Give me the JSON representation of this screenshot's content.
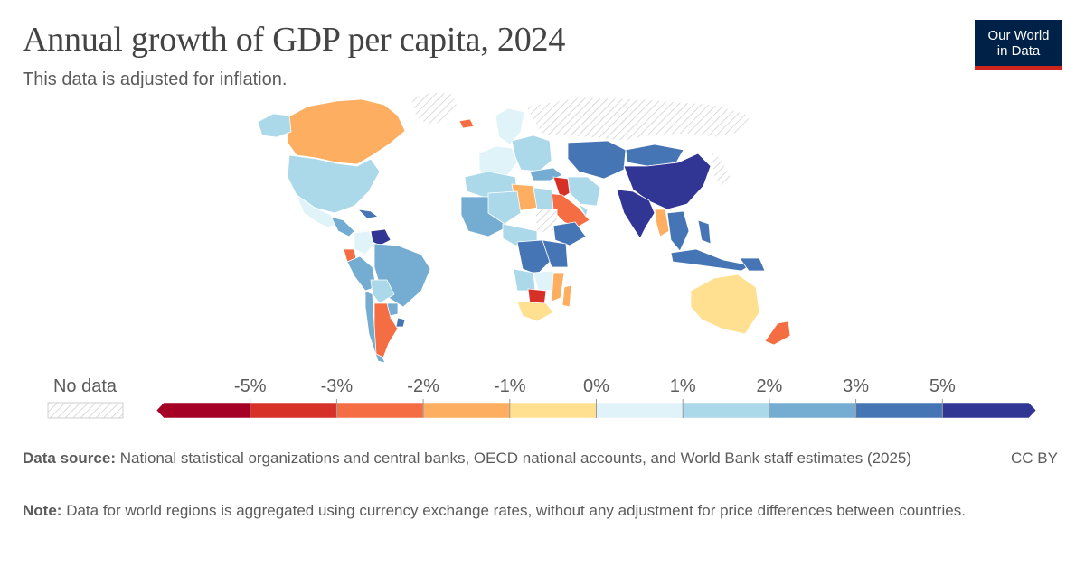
{
  "title": "Annual growth of GDP per capita, 2024",
  "subtitle": "This data is adjusted for inflation.",
  "logo": {
    "line1": "Our World",
    "line2": "in Data"
  },
  "legend": {
    "no_data_label": "No data",
    "bins": [
      {
        "color": "#a50026"
      },
      {
        "color": "#d73027"
      },
      {
        "color": "#f46d43"
      },
      {
        "color": "#fdae61"
      },
      {
        "color": "#fee090"
      },
      {
        "color": "#e0f3f8"
      },
      {
        "color": "#abd9e9"
      },
      {
        "color": "#74add1"
      },
      {
        "color": "#4575b4"
      },
      {
        "color": "#313695"
      }
    ],
    "ticks": [
      "-5%",
      "-3%",
      "-2%",
      "-1%",
      "0%",
      "1%",
      "2%",
      "3%",
      "5%"
    ]
  },
  "source": {
    "label": "Data source:",
    "text": "National statistical organizations and central banks, OECD national accounts, and World Bank staff estimates (2025)"
  },
  "note": {
    "label": "Note:",
    "text": "Data for world regions is aggregated using currency exchange rates, without any adjustment for price differences between countries."
  },
  "license": "CC BY",
  "regions": [
    {
      "name": "Canada",
      "color": "#fdae61"
    },
    {
      "name": "United States",
      "color": "#abd9e9"
    },
    {
      "name": "Alaska",
      "color": "#abd9e9"
    },
    {
      "name": "Greenland",
      "color": "#e8e8e8"
    },
    {
      "name": "Mexico",
      "color": "#e0f3f8"
    },
    {
      "name": "Central America",
      "color": "#74add1"
    },
    {
      "name": "Caribbean",
      "color": "#4575b4"
    },
    {
      "name": "Colombia",
      "color": "#e0f3f8"
    },
    {
      "name": "Venezuela",
      "color": "#313695"
    },
    {
      "name": "Ecuador",
      "color": "#f46d43"
    },
    {
      "name": "Peru",
      "color": "#74add1"
    },
    {
      "name": "Brazil",
      "color": "#74add1"
    },
    {
      "name": "Bolivia",
      "color": "#abd9e9"
    },
    {
      "name": "Paraguay",
      "color": "#74add1"
    },
    {
      "name": "Chile",
      "color": "#74add1"
    },
    {
      "name": "Argentina",
      "color": "#f46d43"
    },
    {
      "name": "Uruguay",
      "color": "#4575b4"
    },
    {
      "name": "Iceland",
      "color": "#f46d43"
    },
    {
      "name": "Western Europe",
      "color": "#e0f3f8"
    },
    {
      "name": "Scandinavia",
      "color": "#e0f3f8"
    },
    {
      "name": "Eastern Europe",
      "color": "#abd9e9"
    },
    {
      "name": "Russia",
      "color": "#e8e8e8"
    },
    {
      "name": "Turkey",
      "color": "#74add1"
    },
    {
      "name": "Kazakhstan & Central Asia",
      "color": "#4575b4"
    },
    {
      "name": "Mongolia",
      "color": "#4575b4"
    },
    {
      "name": "China",
      "color": "#313695"
    },
    {
      "name": "India",
      "color": "#313695"
    },
    {
      "name": "Iran",
      "color": "#abd9e9"
    },
    {
      "name": "Iraq",
      "color": "#d73027"
    },
    {
      "name": "Saudi Arabia",
      "color": "#f46d43"
    },
    {
      "name": "Arabian Gulf",
      "color": "#abd9e9"
    },
    {
      "name": "Japan & Korea",
      "color": "#e8e8e8"
    },
    {
      "name": "Myanmar",
      "color": "#fdae61"
    },
    {
      "name": "Indochina",
      "color": "#4575b4"
    },
    {
      "name": "Indonesia",
      "color": "#4575b4"
    },
    {
      "name": "Philippines",
      "color": "#4575b4"
    },
    {
      "name": "Papua New Guinea",
      "color": "#4575b4"
    },
    {
      "name": "Australia",
      "color": "#fee090"
    },
    {
      "name": "New Zealand",
      "color": "#f46d43"
    },
    {
      "name": "Morocco & Algeria",
      "color": "#abd9e9"
    },
    {
      "name": "Libya",
      "color": "#fdae61"
    },
    {
      "name": "Egypt",
      "color": "#abd9e9"
    },
    {
      "name": "West Africa",
      "color": "#74add1"
    },
    {
      "name": "Sahel",
      "color": "#abd9e9"
    },
    {
      "name": "Sudan",
      "color": "#e8e8e8"
    },
    {
      "name": "Ethiopia",
      "color": "#4575b4"
    },
    {
      "name": "Central Africa",
      "color": "#abd9e9"
    },
    {
      "name": "DR Congo",
      "color": "#4575b4"
    },
    {
      "name": "East Africa",
      "color": "#4575b4"
    },
    {
      "name": "Angola",
      "color": "#abd9e9"
    },
    {
      "name": "Zambia & Zimbabwe",
      "color": "#e0f3f8"
    },
    {
      "name": "Mozambique",
      "color": "#fdae61"
    },
    {
      "name": "Botswana",
      "color": "#d73027"
    },
    {
      "name": "South Africa",
      "color": "#fee090"
    },
    {
      "name": "Madagascar",
      "color": "#fdae61"
    }
  ]
}
